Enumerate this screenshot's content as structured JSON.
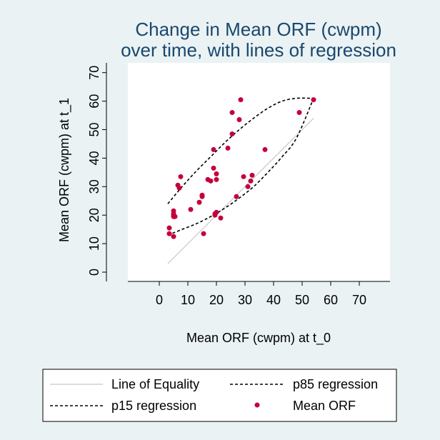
{
  "chart_data": {
    "type": "scatter",
    "title_lines": [
      "Change in Mean ORF (cwpm)",
      "over time, with lines of regression"
    ],
    "xlabel": "Mean ORF (cwpm) at t_0",
    "ylabel": "Mean ORF (cwpm) at t_1",
    "xlim": [
      -10,
      80
    ],
    "ylim": [
      -2,
      72
    ],
    "x_ticks": [
      0,
      10,
      20,
      30,
      40,
      50,
      60,
      70
    ],
    "y_ticks": [
      0,
      10,
      20,
      30,
      40,
      50,
      60,
      70
    ],
    "grid": false,
    "legend_position": "bottom",
    "series": [
      {
        "name": "Line of Equality",
        "kind": "line",
        "color": "#c8c8c8",
        "x": [
          3,
          54
        ],
        "y": [
          3,
          54
        ]
      },
      {
        "name": "p85 regression",
        "kind": "dashed-line",
        "color": "#000000",
        "x": [
          3,
          8,
          13,
          18,
          23,
          28,
          33,
          38,
          43,
          48,
          54
        ],
        "y": [
          24,
          30,
          35.5,
          40.5,
          45.5,
          50,
          54,
          57.5,
          60,
          61,
          61
        ]
      },
      {
        "name": "p15 regression",
        "kind": "dashed-line",
        "color": "#000000",
        "x": [
          3,
          8,
          13,
          18,
          23,
          28,
          33,
          38,
          43,
          48,
          54
        ],
        "y": [
          13,
          15,
          17,
          19.5,
          22.5,
          26,
          30,
          35,
          40.5,
          47,
          61
        ]
      },
      {
        "name": "Mean ORF",
        "kind": "points",
        "color": "#c4003b",
        "x": [
          3.5,
          3.5,
          5,
          5,
          5,
          5,
          5,
          5.5,
          6.5,
          7,
          7.5,
          11,
          14,
          15,
          15,
          15.5,
          17,
          18,
          19,
          19,
          19.5,
          19.5,
          20,
          20,
          20,
          21.5,
          24,
          25.5,
          25.5,
          27,
          28,
          28.5,
          29.5,
          31,
          32,
          32.5,
          37,
          49,
          54
        ],
        "y": [
          15.5,
          13.5,
          21.5,
          20.5,
          20,
          19.5,
          12.5,
          19.5,
          30.5,
          29.5,
          33.5,
          22,
          24.5,
          27,
          26.5,
          13.5,
          32.5,
          32,
          36.5,
          43,
          20.5,
          20,
          21,
          32.5,
          34.5,
          19,
          43.5,
          56,
          48.5,
          26.5,
          53.5,
          60.5,
          33.5,
          30,
          32,
          34,
          43,
          56,
          60.5
        ]
      }
    ]
  },
  "legend": {
    "items": [
      {
        "label": "Line of Equality"
      },
      {
        "label": "p85 regression"
      },
      {
        "label": "p15 regression"
      },
      {
        "label": "Mean ORF"
      }
    ]
  }
}
